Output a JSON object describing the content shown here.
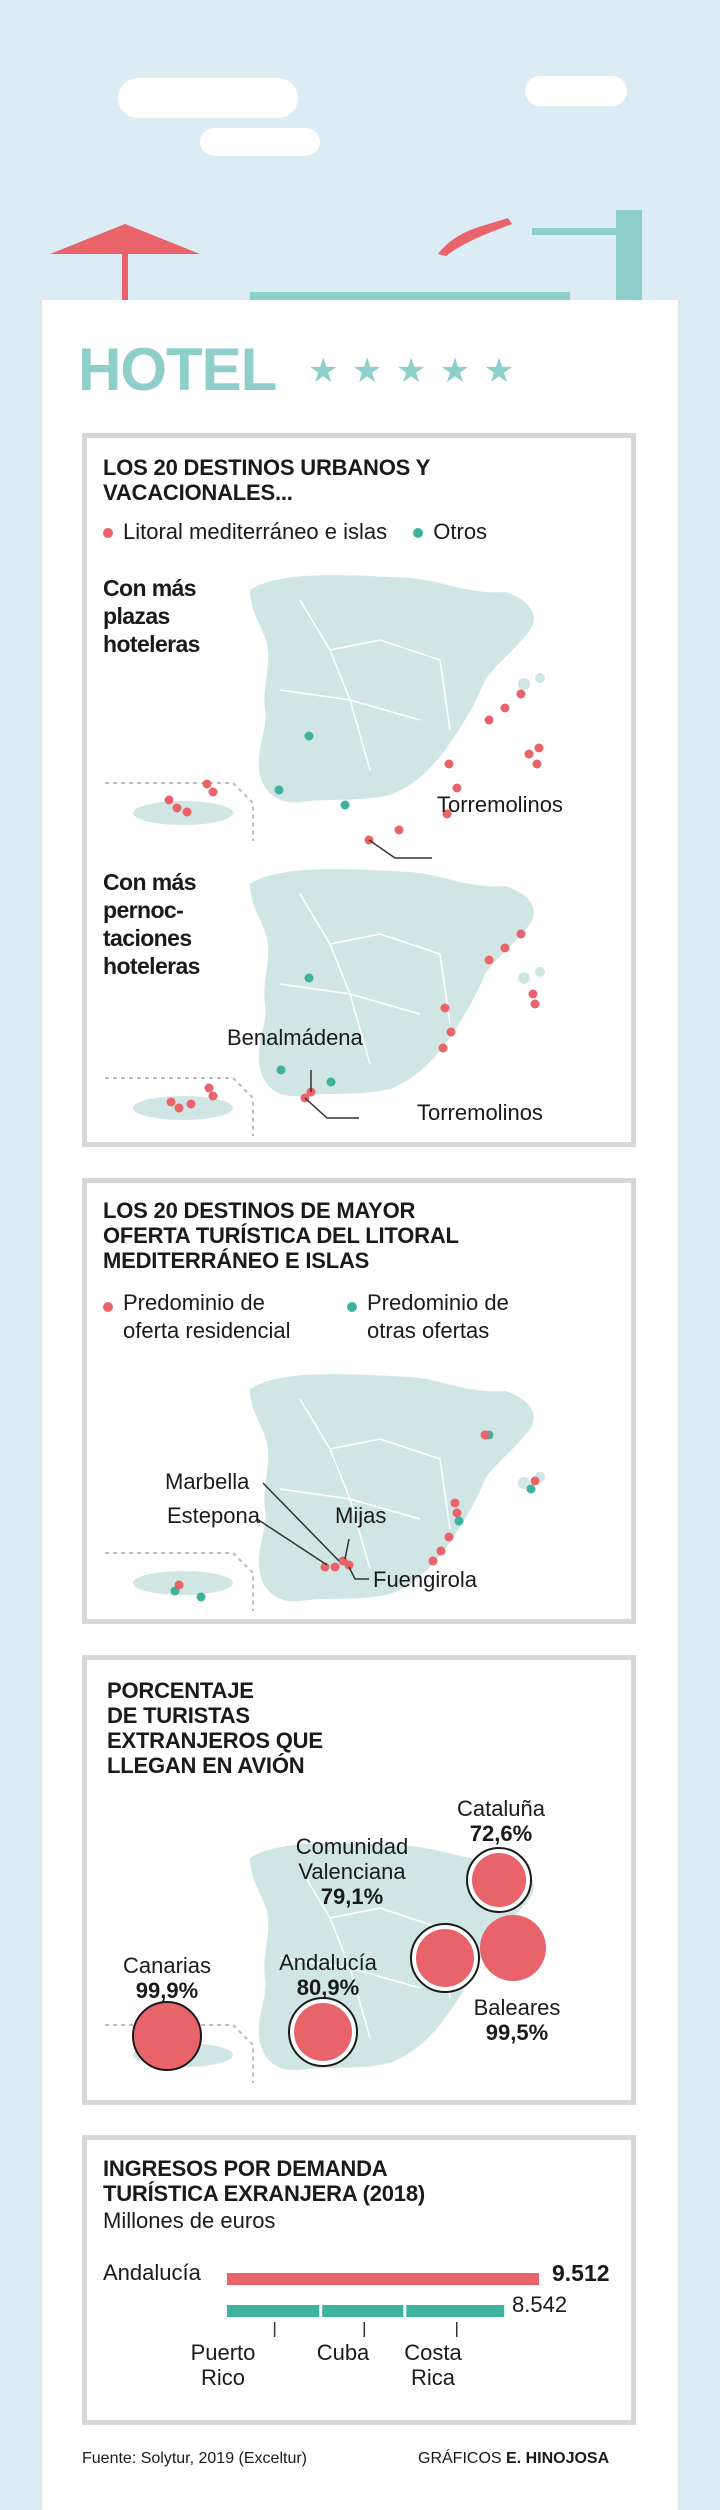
{
  "header": {
    "title": "HOTEL",
    "stars": "★ ★ ★ ★ ★"
  },
  "colors": {
    "sky": "#dcecf4",
    "teal": "#8ecfcb",
    "coral": "#e8636a",
    "green": "#3db39e",
    "map": "#cfe6e4",
    "border": "#d7d7d7"
  },
  "panel1": {
    "title_lines": [
      "LOS 20 DESTINOS URBANOS Y",
      "VACACIONALES..."
    ],
    "legend": {
      "red": "Litoral mediterráneo e islas",
      "green": "Otros"
    },
    "map1": {
      "subtitle_lines": [
        "Con más",
        "plazas",
        "hoteleras"
      ],
      "callout": "Torremolinos"
    },
    "map2": {
      "subtitle_lines": [
        "Con más",
        "pernoc-",
        "taciones",
        "hoteleras"
      ],
      "callout_top": "Benalmádena",
      "callout": "Torremolinos"
    }
  },
  "panel2": {
    "title_lines": [
      "LOS 20 DESTINOS DE MAYOR",
      "OFERTA TURÍSTICA DEL LITORAL",
      "MEDITERRÁNEO E ISLAS"
    ],
    "legend": {
      "red_lines": [
        "Predominio de",
        "oferta residencial"
      ],
      "green_lines": [
        "Predominio de",
        "otras ofertas"
      ]
    },
    "labels": {
      "marbella": "Marbella",
      "estepona": "Estepona",
      "mijas": "Mijas",
      "fuengirola": "Fuengirola"
    }
  },
  "panel3": {
    "title_lines": [
      "PORCENTAJE",
      "DE TURISTAS",
      "EXTRANJEROS QUE",
      "LLEGAN EN AVIÓN"
    ],
    "regions": [
      {
        "name_lines": [
          "Cataluña"
        ],
        "value": "72,6%"
      },
      {
        "name_lines": [
          "Comunidad",
          "Valenciana"
        ],
        "value": "79,1%"
      },
      {
        "name_lines": [
          "Canarias"
        ],
        "value": "99,9%"
      },
      {
        "name_lines": [
          "Andalucía"
        ],
        "value": "80,9%"
      },
      {
        "name_lines": [
          "Baleares"
        ],
        "value": "99,5%"
      }
    ]
  },
  "panel4": {
    "title_lines": [
      "INGRESOS POR DEMANDA",
      "TURÍSTICA EXRANJERA (2018)"
    ],
    "subtitle": "Millones de euros",
    "bar_label": "Andalucía",
    "bar_value": "9.512",
    "compare_value": "8.542",
    "segments": [
      {
        "label_lines": [
          "Puerto",
          "Rico"
        ]
      },
      {
        "label_lines": [
          "Cuba"
        ]
      },
      {
        "label_lines": [
          "Costa",
          "Rica"
        ]
      }
    ]
  },
  "chart_data": {
    "type": "bar",
    "categories": [
      "Andalucía",
      "Puerto Rico + Cuba + Costa Rica"
    ],
    "values": [
      9512,
      8542
    ]
  },
  "footer": {
    "source": "Fuente: Solytur, 2019 (Exceltur)",
    "credit_prefix": "GRÁFICOS ",
    "credit_name": "E. HINOJOSA"
  }
}
